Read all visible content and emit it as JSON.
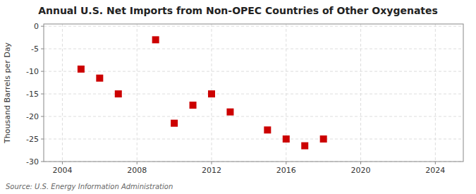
{
  "chart_data": {
    "type": "scatter",
    "title": "Annual U.S. Net Imports from Non-OPEC Countries of Other Oxygenates",
    "ylabel": "Thousand Barrels per Day",
    "annotations": [
      "Source: U.S. Energy Information Administration"
    ],
    "x": [
      2005,
      2006,
      2007,
      2009,
      2010,
      2011,
      2012,
      2013,
      2015,
      2016,
      2017,
      2018
    ],
    "values": [
      -9.5,
      -11.5,
      -15.0,
      -3.0,
      -21.5,
      -17.5,
      -15.0,
      -19.0,
      -23.0,
      -25.0,
      -26.5,
      -25.0
    ],
    "color": "#cc0000",
    "marker": "square",
    "xlim": [
      2003,
      2025.5
    ],
    "ylim": [
      -30,
      0.5
    ],
    "xticks": [
      2004,
      2008,
      2012,
      2016,
      2020,
      2024
    ],
    "yticks": [
      0,
      -5,
      -10,
      -15,
      -20,
      -25,
      -30
    ],
    "grid": true
  }
}
